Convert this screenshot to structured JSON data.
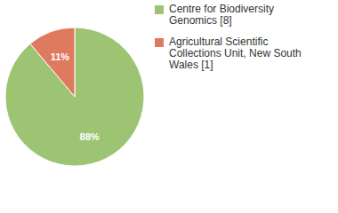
{
  "chart_data": {
    "type": "pie",
    "categories": [
      "Centre for Biodiversity Genomics [8]",
      "Agricultural Scientific Collections Unit, New South Wales [1]"
    ],
    "values": [
      88,
      11
    ],
    "value_labels": [
      "88%",
      "11%"
    ],
    "colors": [
      "#9dc472",
      "#e07a5f"
    ],
    "data_labels": true,
    "legend": "top-right"
  }
}
